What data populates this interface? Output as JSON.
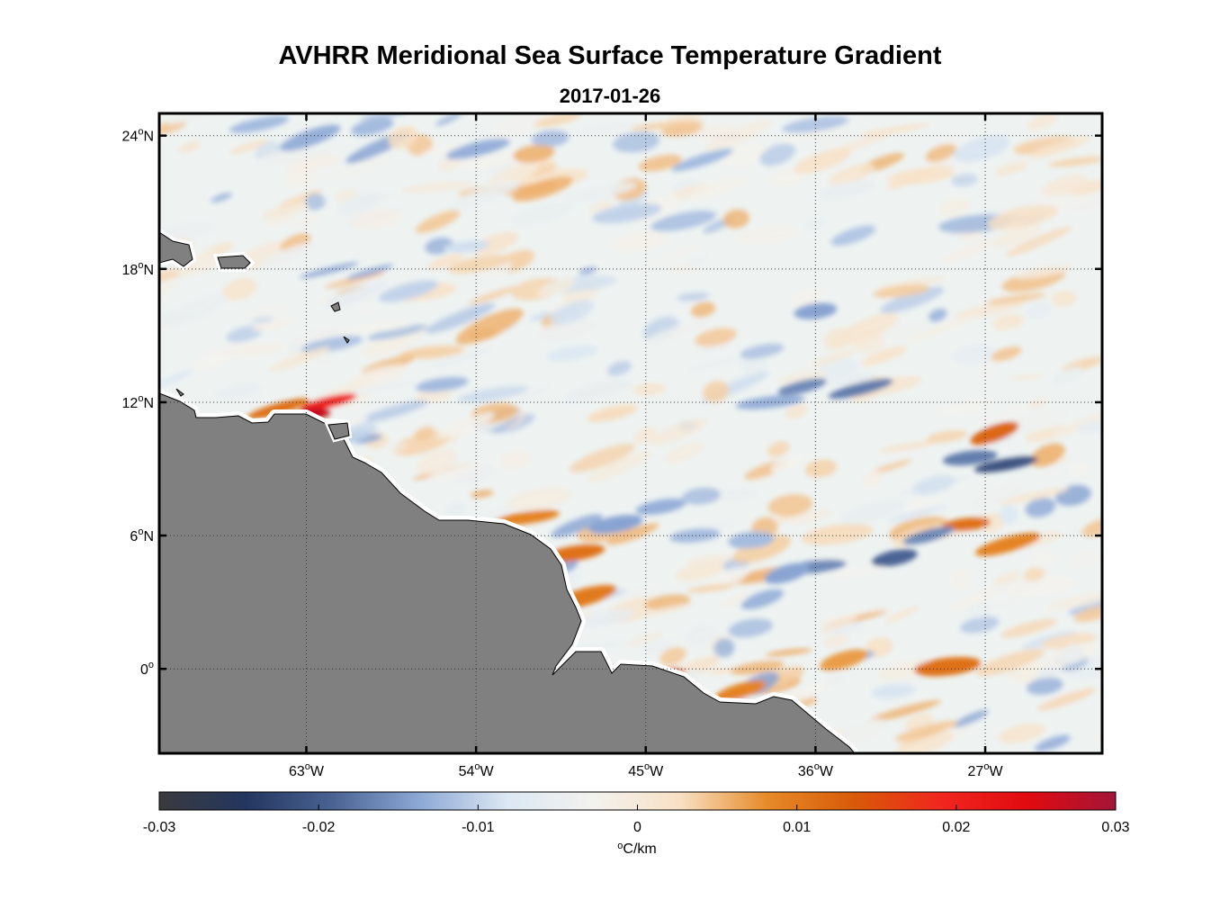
{
  "title": "AVHRR Meridional Sea Surface Temperature Gradient",
  "subtitle": "2017-01-26",
  "map": {
    "lon_range": [
      -70.8,
      -20.8
    ],
    "lat_range": [
      -3.8,
      25.0
    ],
    "lat_ticks": [
      {
        "value": 24,
        "num": "24",
        "hemi": "N"
      },
      {
        "value": 18,
        "num": "18",
        "hemi": "N"
      },
      {
        "value": 12,
        "num": "12",
        "hemi": "N"
      },
      {
        "value": 6,
        "num": "6",
        "hemi": "N"
      },
      {
        "value": 0,
        "num": "0",
        "hemi": ""
      }
    ],
    "lon_ticks": [
      {
        "value": -63,
        "num": "63",
        "hemi": "W"
      },
      {
        "value": -54,
        "num": "54",
        "hemi": "W"
      },
      {
        "value": -45,
        "num": "45",
        "hemi": "W"
      },
      {
        "value": -36,
        "num": "36",
        "hemi": "W"
      },
      {
        "value": -27,
        "num": "27",
        "hemi": "W"
      }
    ],
    "degree_mark": "o",
    "grid": "dotted",
    "land_color": "#808080",
    "ocean_background": "#eef3f2",
    "colormap": [
      "#3a3a3e",
      "#23365f",
      "#4a6393",
      "#8ea9d6",
      "#dce8f3",
      "#f3f2ee",
      "#f8e0c4",
      "#e68a28",
      "#d85a08",
      "#f1261e",
      "#e00a10",
      "#a31538"
    ]
  },
  "colorbar": {
    "vmin": -0.03,
    "vmax": 0.03,
    "tick_labels": [
      "-0.03",
      "-0.02",
      "-0.01",
      "0",
      "0.01",
      "0.02",
      "0.03"
    ],
    "tick_values": [
      -0.03,
      -0.02,
      -0.01,
      0,
      0.01,
      0.02,
      0.03
    ],
    "unit_deg": "o",
    "unit_text": "C/km"
  }
}
